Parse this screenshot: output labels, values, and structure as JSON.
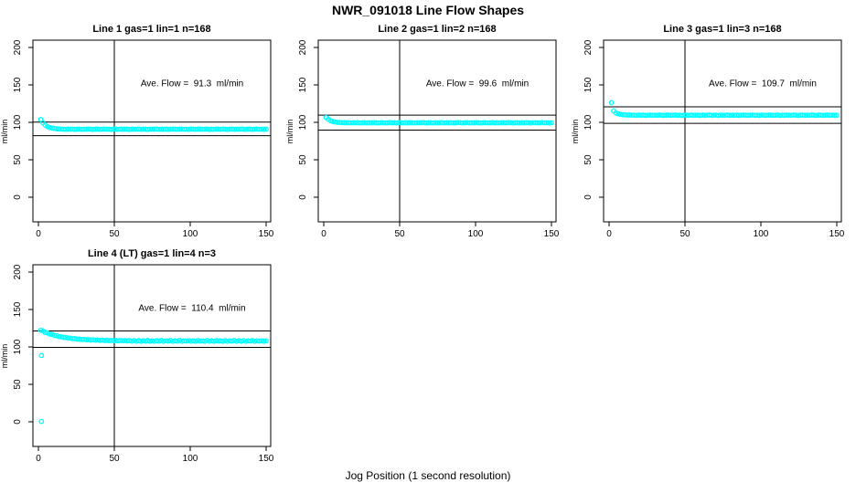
{
  "chart_data": {
    "type": "scatter",
    "suptitle": "NWR_091018  Line Flow Shapes",
    "xlabel": "Jog Position (1 second resolution)",
    "x_ticks": [
      0,
      50,
      100,
      150
    ],
    "y_ticks": [
      0,
      50,
      100,
      150,
      200
    ],
    "xlim": [
      -3,
      153
    ],
    "ylim": [
      -33,
      210
    ],
    "grid": false,
    "marker": {
      "shape": "open-circle",
      "color": "#00FFFF"
    },
    "panels": [
      {
        "title": "Line 1 gas=1 lin=1 n=168",
        "annotation": "Ave. Flow =  91.3  ml/min",
        "ave_flow": 91.3,
        "n": 168,
        "ylabel": "ml/min",
        "vline_x": 50,
        "hlines": [
          100.4,
          82.2
        ],
        "x_start": 1.5,
        "x_step": 1.5,
        "y": [
          103.8,
          99.4,
          96.2,
          94.3,
          93.0,
          92.2,
          91.8,
          91.4,
          91.2,
          91.0,
          90.9,
          90.6,
          91.0,
          90.7,
          91.1,
          90.5,
          90.8,
          91.0,
          90.6,
          90.9,
          90.7,
          91.1,
          90.8,
          90.5,
          90.9,
          91.0,
          90.6,
          90.8,
          91.1,
          90.7,
          90.9,
          90.5,
          91.0,
          90.8,
          90.6,
          91.1,
          90.7,
          90.9,
          90.8,
          90.5,
          91.0,
          90.7,
          90.9,
          91.1,
          90.6,
          90.8,
          90.9,
          90.5,
          91.0,
          90.7,
          90.8,
          91.1,
          90.6,
          90.9,
          90.7,
          91.0,
          90.5,
          90.8,
          91.1,
          90.9,
          90.6,
          90.8,
          91.0,
          90.7,
          90.9,
          90.5,
          91.1,
          90.8,
          90.6,
          91.0,
          90.9,
          90.7,
          90.8,
          91.1,
          90.5,
          90.9,
          90.6,
          91.0,
          90.8,
          90.7,
          91.1,
          90.9,
          90.5,
          90.8,
          91.0,
          90.6,
          90.9,
          90.7,
          91.1,
          90.8,
          90.5,
          91.0,
          90.9,
          90.6,
          90.8,
          91.1,
          90.7,
          90.9,
          90.6,
          90.8
        ]
      },
      {
        "title": "Line 2 gas=1 lin=2 n=168",
        "annotation": "Ave. Flow =  99.6  ml/min",
        "ave_flow": 99.6,
        "n": 168,
        "ylabel": "ml/min",
        "vline_x": 50,
        "hlines": [
          109.6,
          89.6
        ],
        "x_start": 1.5,
        "x_step": 1.5,
        "y": [
          106.5,
          104.0,
          102.2,
          101.1,
          100.4,
          100.0,
          99.8,
          99.6,
          99.5,
          99.4,
          99.5,
          99.2,
          99.6,
          99.3,
          99.7,
          99.1,
          99.4,
          99.6,
          99.2,
          99.5,
          99.3,
          99.7,
          99.4,
          99.1,
          99.5,
          99.6,
          99.2,
          99.4,
          99.7,
          99.3,
          99.5,
          99.1,
          99.6,
          99.4,
          99.2,
          99.7,
          99.3,
          99.5,
          99.4,
          99.1,
          99.6,
          99.3,
          99.5,
          99.7,
          99.2,
          99.4,
          99.5,
          99.1,
          99.6,
          99.3,
          99.4,
          99.7,
          99.2,
          99.5,
          99.3,
          99.6,
          99.1,
          99.4,
          99.7,
          99.5,
          99.2,
          99.4,
          99.6,
          99.3,
          99.5,
          99.1,
          99.7,
          99.4,
          99.2,
          99.6,
          99.5,
          99.3,
          99.4,
          99.7,
          99.1,
          99.5,
          99.2,
          99.6,
          99.4,
          99.3,
          99.7,
          99.5,
          99.1,
          99.4,
          99.6,
          99.2,
          99.5,
          99.3,
          99.7,
          99.4,
          99.1,
          99.6,
          99.5,
          99.2,
          99.4,
          99.7,
          99.3,
          99.5,
          99.2,
          99.4
        ]
      },
      {
        "title": "Line 3 gas=1 lin=3 n=168",
        "annotation": "Ave. Flow =  109.7  ml/min",
        "ave_flow": 109.7,
        "n": 168,
        "ylabel": "ml/min",
        "vline_x": 50,
        "hlines": [
          120.7,
          98.7
        ],
        "x_start": 1.5,
        "x_step": 1.5,
        "y": [
          126.3,
          115.2,
          112.5,
          111.4,
          110.7,
          110.3,
          110.0,
          109.8,
          109.7,
          109.6,
          109.6,
          109.3,
          109.7,
          109.4,
          109.8,
          109.2,
          109.5,
          109.7,
          109.3,
          109.6,
          109.4,
          109.8,
          109.5,
          109.2,
          109.6,
          109.7,
          109.3,
          109.5,
          109.8,
          109.4,
          109.6,
          109.2,
          109.7,
          109.5,
          109.3,
          109.8,
          109.4,
          109.6,
          109.5,
          109.2,
          109.7,
          109.4,
          109.6,
          109.8,
          109.3,
          109.5,
          109.6,
          109.2,
          109.7,
          109.4,
          109.5,
          109.8,
          109.3,
          109.6,
          109.4,
          109.7,
          109.2,
          109.5,
          109.8,
          109.6,
          109.3,
          109.5,
          109.7,
          109.4,
          109.6,
          109.2,
          109.8,
          109.5,
          109.3,
          109.7,
          109.6,
          109.4,
          109.5,
          109.8,
          109.2,
          109.6,
          109.3,
          109.7,
          109.5,
          109.4,
          109.8,
          109.6,
          109.2,
          109.5,
          109.7,
          109.3,
          109.6,
          109.4,
          109.8,
          109.5,
          109.2,
          109.7,
          109.6,
          109.3,
          109.5,
          109.8,
          109.4,
          109.6,
          109.3,
          109.5
        ]
      },
      {
        "title": "Line 4 (LT) gas=1 lin=4 n=3",
        "annotation": "Ave. Flow =  110.4  ml/min",
        "ave_flow": 110.4,
        "n": 3,
        "ylabel": "ml/min",
        "vline_x": 50,
        "hlines": [
          121.4,
          99.4
        ],
        "x_start": 1.5,
        "x_step": 1.5,
        "extra_points": [
          [
            2,
            88.5
          ],
          [
            2,
            0.5
          ]
        ],
        "y": [
          122.3,
          121.2,
          119.4,
          118.7,
          117.1,
          116.6,
          115.3,
          115.0,
          113.8,
          113.7,
          112.7,
          112.6,
          111.7,
          111.8,
          111.0,
          111.1,
          110.4,
          110.5,
          109.9,
          110.1,
          109.5,
          109.8,
          109.2,
          109.5,
          109.0,
          109.3,
          108.7,
          109.1,
          108.5,
          108.9,
          108.4,
          108.8,
          108.3,
          108.7,
          108.2,
          108.6,
          108.1,
          108.5,
          108.0,
          108.4,
          107.8,
          108.5,
          107.7,
          108.4,
          107.6,
          108.3,
          107.8,
          108.6,
          107.5,
          108.2,
          107.6,
          108.4,
          107.8,
          108.6,
          107.4,
          108.2,
          107.9,
          108.5,
          107.5,
          108.3,
          107.7,
          108.6,
          107.4,
          108.1,
          107.9,
          108.4,
          107.6,
          108.3,
          107.5,
          108.5,
          107.8,
          108.2,
          107.4,
          108.6,
          107.7,
          108.3,
          107.5,
          108.4,
          107.9,
          108.1,
          107.6,
          108.5,
          107.4,
          108.2,
          107.8,
          108.6,
          107.5,
          108.3,
          107.7,
          108.4,
          107.6,
          108.2,
          107.9,
          108.5,
          107.4,
          108.3,
          107.8,
          108.1,
          107.6,
          108.0
        ]
      }
    ]
  }
}
